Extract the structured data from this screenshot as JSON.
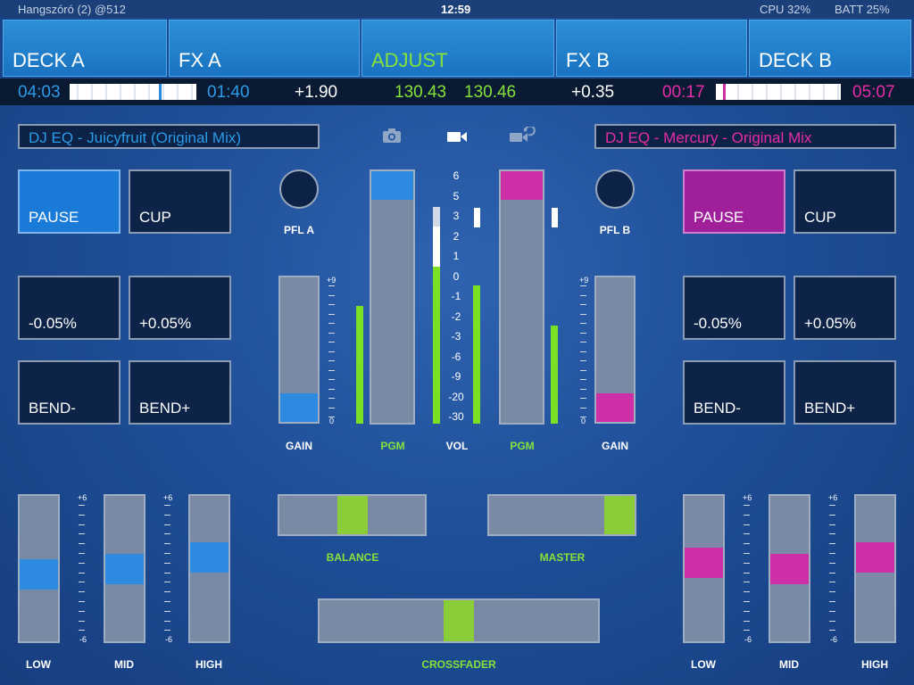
{
  "status": {
    "device": "Hangszóró (2) @512",
    "clock": "12:59",
    "cpu": "CPU 32%",
    "batt": "BATT 25%"
  },
  "tabs": [
    "DECK A",
    "FX A",
    "ADJUST",
    "FX B",
    "DECK B"
  ],
  "info": {
    "deckA": {
      "elapsed": "04:03",
      "remaining": "01:40",
      "pitch": "+1.90"
    },
    "bpmA": "130.43",
    "bpmB": "130.46",
    "deckB": {
      "pitch": "+0.35",
      "elapsed": "00:17",
      "remaining": "05:07"
    }
  },
  "deckA": {
    "title": "DJ EQ - Juicyfruit (Original Mix)",
    "buttons": [
      "PAUSE",
      "CUP",
      "-0.05%",
      "+0.05%",
      "BEND-",
      "BEND+"
    ]
  },
  "deckB": {
    "title": "DJ EQ - Mercury - Original Mix",
    "buttons": [
      "PAUSE",
      "CUP",
      "-0.05%",
      "+0.05%",
      "BEND-",
      "BEND+"
    ]
  },
  "mixer": {
    "pfl_a": "PFL A",
    "pfl_b": "PFL B",
    "gain": "GAIN",
    "pgm": "PGM",
    "vol": "VOL",
    "gain_scale_top": "+9",
    "gain_scale_bottom": "0",
    "vol_scale": [
      "6",
      "5",
      "3",
      "2",
      "1",
      "0",
      "-1",
      "-2",
      "-3",
      "-6",
      "-9",
      "-20",
      "-30"
    ],
    "balance": "BALANCE",
    "master": "MASTER",
    "crossfader": "CROSSFADER"
  },
  "eq": {
    "low": "LOW",
    "mid": "MID",
    "high": "HIGH",
    "scale_top": "+6",
    "scale_bottom": "-6"
  },
  "levels": {
    "gainA": 0.0,
    "gainB": 0.0,
    "pgmA": 1.0,
    "pgmB": 1.0,
    "eqA": {
      "low": 0.45,
      "mid": 0.5,
      "high": 0.6
    },
    "eqB": {
      "low": 0.55,
      "mid": 0.5,
      "high": 0.6
    },
    "balance": 0.5,
    "master": 1.0,
    "crossfader": 0.5
  },
  "colors": {
    "deckA": "#2c8be0",
    "deckB": "#cf2fa6",
    "accent": "#86e23a"
  },
  "icons": {
    "camera": "camera-icon",
    "video": "video-camera-icon",
    "video_refresh": "video-refresh-icon"
  }
}
